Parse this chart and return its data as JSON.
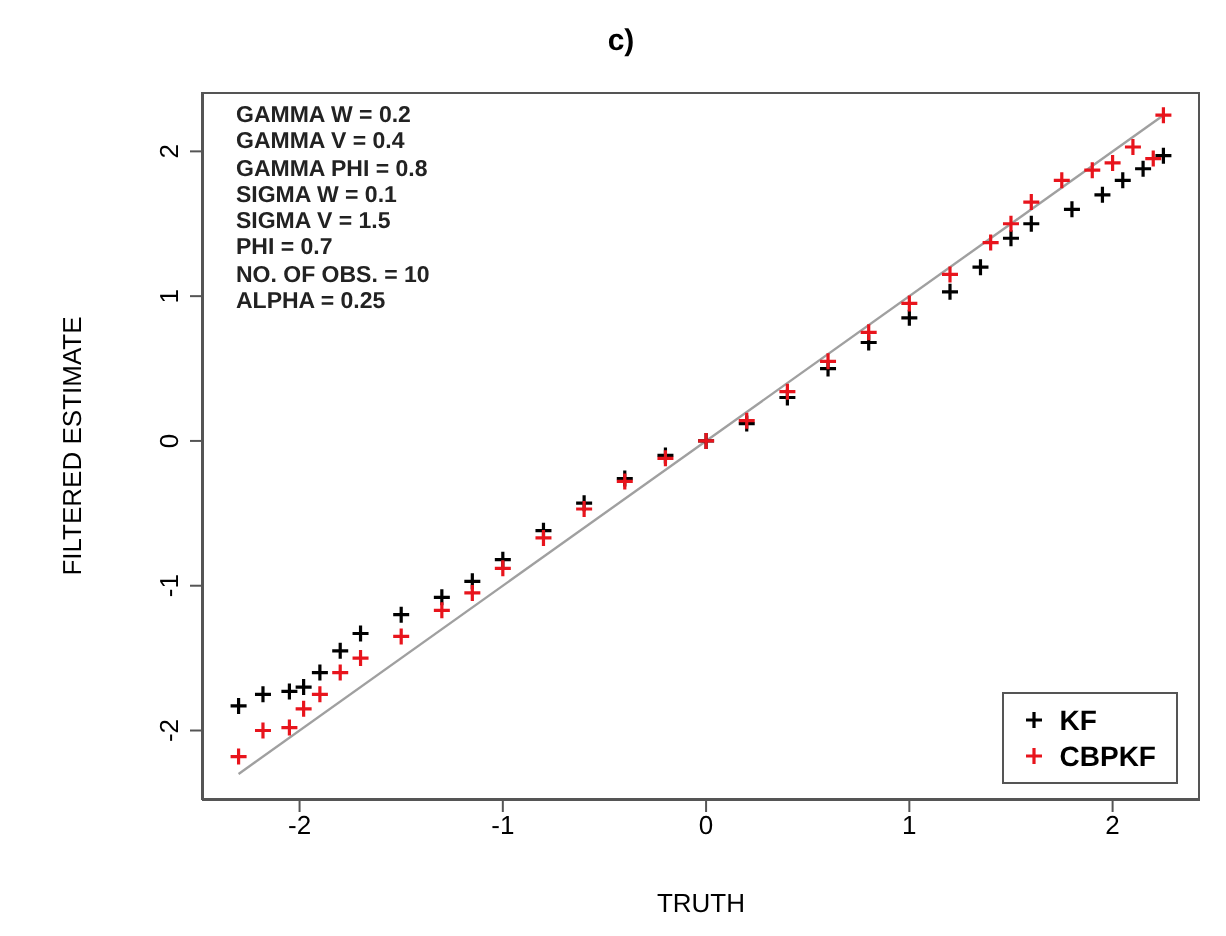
{
  "chart_data": {
    "type": "scatter",
    "title": "c)",
    "xlabel": "TRUTH",
    "ylabel": "FILTERED ESTIMATE",
    "annotations": [
      "GAMMA W = 0.2",
      "GAMMA V = 0.4",
      "GAMMA PHI = 0.8",
      "SIGMA W = 0.1",
      "SIGMA V = 1.5",
      "PHI = 0.7",
      "NO. OF OBS. = 10",
      "ALPHA = 0.25"
    ],
    "xlim": [
      -2.48,
      2.43
    ],
    "ylim": [
      -2.48,
      2.41
    ],
    "xticks": [
      -2,
      -1,
      0,
      1,
      2
    ],
    "yticks": [
      -2,
      -1,
      0,
      1,
      2
    ],
    "grid": false,
    "legend": "bottom right",
    "marker": "cross",
    "series": [
      {
        "type": "line",
        "color": "#a0a0a0",
        "marker": "none",
        "x": [
          -2.3,
          2.25
        ],
        "values": [
          -2.3,
          2.25
        ]
      },
      {
        "name": "KF",
        "color": "#000000",
        "x": [
          -2.3,
          -2.18,
          -2.05,
          -1.98,
          -1.9,
          -1.8,
          -1.7,
          -1.5,
          -1.3,
          -1.15,
          -1.0,
          -0.8,
          -0.6,
          -0.4,
          -0.2,
          0,
          0.2,
          0.4,
          0.6,
          0.8,
          1.0,
          1.2,
          1.35,
          1.5,
          1.6,
          1.8,
          1.95,
          2.05,
          2.15,
          2.25
        ],
        "values": [
          -1.83,
          -1.75,
          -1.73,
          -1.7,
          -1.6,
          -1.45,
          -1.33,
          -1.2,
          -1.08,
          -0.97,
          -0.82,
          -0.62,
          -0.43,
          -0.26,
          -0.1,
          0.0,
          0.12,
          0.3,
          0.5,
          0.68,
          0.85,
          1.03,
          1.2,
          1.4,
          1.5,
          1.6,
          1.7,
          1.8,
          1.88,
          1.97
        ]
      },
      {
        "name": "CBPKF",
        "color": "#e8141c",
        "x": [
          -2.3,
          -2.18,
          -2.05,
          -1.98,
          -1.9,
          -1.8,
          -1.7,
          -1.5,
          -1.3,
          -1.15,
          -1.0,
          -0.8,
          -0.6,
          -0.4,
          -0.2,
          0,
          0.2,
          0.4,
          0.6,
          0.8,
          1.0,
          1.2,
          1.4,
          1.5,
          1.6,
          1.75,
          1.9,
          2.0,
          2.1,
          2.2,
          2.25
        ],
        "values": [
          -2.18,
          -2.0,
          -1.98,
          -1.85,
          -1.75,
          -1.6,
          -1.5,
          -1.35,
          -1.17,
          -1.05,
          -0.88,
          -0.67,
          -0.47,
          -0.28,
          -0.12,
          0.0,
          0.14,
          0.34,
          0.55,
          0.75,
          0.95,
          1.15,
          1.37,
          1.5,
          1.65,
          1.8,
          1.87,
          1.92,
          2.03,
          1.95,
          2.25
        ]
      }
    ]
  }
}
